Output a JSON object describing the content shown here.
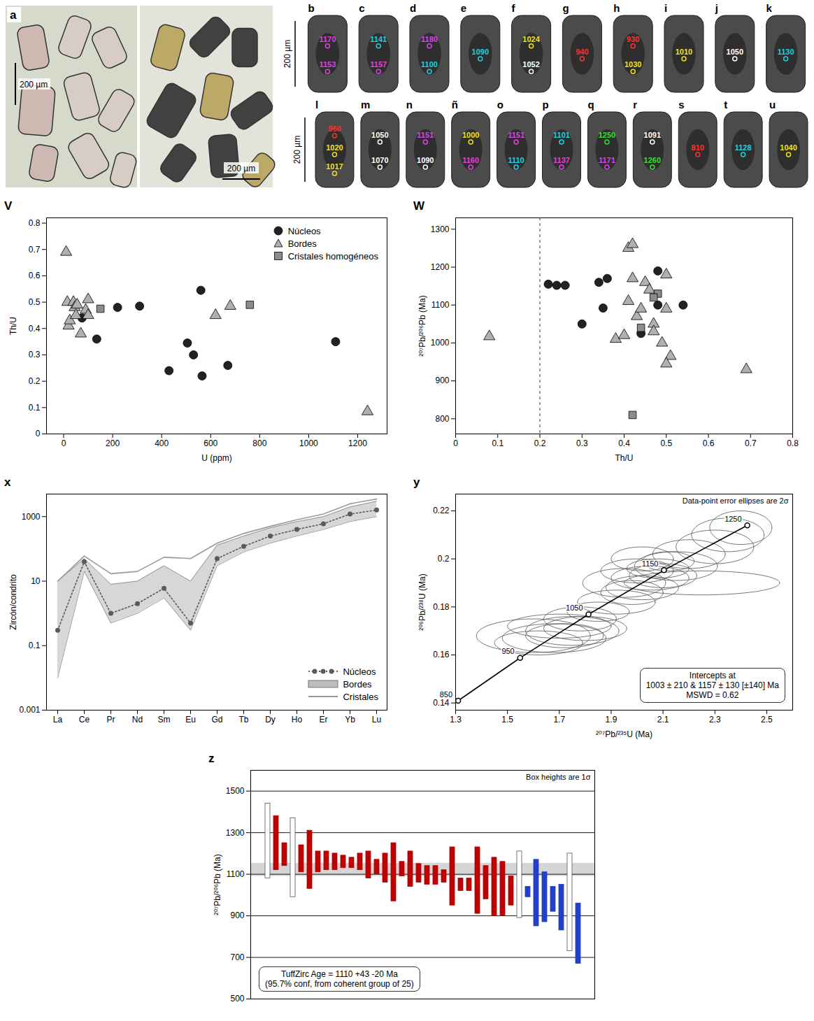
{
  "images": {
    "panel_a": {
      "label": "a",
      "scale_labels": [
        "200 µm",
        "200 µm"
      ]
    },
    "grains": {
      "scale_label": "200 µm",
      "rows": [
        [
          {
            "label": "b",
            "spots": [
              {
                "age": 1170,
                "color": "#e040e0"
              },
              {
                "age": 1153,
                "color": "#e040e0"
              }
            ]
          },
          {
            "label": "c",
            "spots": [
              {
                "age": 1141,
                "color": "#20d0e0"
              },
              {
                "age": 1157,
                "color": "#e040e0"
              }
            ]
          },
          {
            "label": "d",
            "spots": [
              {
                "age": 1180,
                "color": "#e040e0"
              },
              {
                "age": 1100,
                "color": "#20d0e0"
              }
            ]
          },
          {
            "label": "e",
            "spots": [
              {
                "age": 1090,
                "color": "#20d0e0"
              }
            ]
          },
          {
            "label": "f",
            "spots": [
              {
                "age": 1024,
                "color": "#f0e020"
              },
              {
                "age": 1052,
                "color": "#ffffff"
              }
            ]
          },
          {
            "label": "g",
            "spots": [
              {
                "age": 940,
                "color": "#ff3030"
              }
            ]
          },
          {
            "label": "h",
            "spots": [
              {
                "age": 930,
                "color": "#ff3030"
              },
              {
                "age": 1030,
                "color": "#f0e020"
              }
            ]
          },
          {
            "label": "i",
            "spots": [
              {
                "age": 1010,
                "color": "#f0e020"
              }
            ]
          },
          {
            "label": "j",
            "spots": [
              {
                "age": 1050,
                "color": "#ffffff"
              }
            ]
          },
          {
            "label": "k",
            "spots": [
              {
                "age": 1130,
                "color": "#20d0e0"
              }
            ]
          }
        ],
        [
          {
            "label": "l",
            "spots": [
              {
                "age": 960,
                "color": "#ff3030"
              },
              {
                "age": 1020,
                "color": "#f0e020"
              },
              {
                "age": 1017,
                "color": "#f0e020"
              }
            ]
          },
          {
            "label": "m",
            "spots": [
              {
                "age": 1050,
                "color": "#ffffff"
              },
              {
                "age": 1070,
                "color": "#ffffff"
              }
            ]
          },
          {
            "label": "n",
            "spots": [
              {
                "age": 1151,
                "color": "#e040e0"
              },
              {
                "age": 1090,
                "color": "#ffffff"
              }
            ]
          },
          {
            "label": "ñ",
            "spots": [
              {
                "age": 1000,
                "color": "#f0e020"
              },
              {
                "age": 1160,
                "color": "#e040e0"
              }
            ]
          },
          {
            "label": "o",
            "spots": [
              {
                "age": 1151,
                "color": "#e040e0"
              },
              {
                "age": 1110,
                "color": "#20d0e0"
              }
            ]
          },
          {
            "label": "p",
            "spots": [
              {
                "age": 1101,
                "color": "#20d0e0"
              },
              {
                "age": 1137,
                "color": "#e040e0"
              }
            ]
          },
          {
            "label": "q",
            "spots": [
              {
                "age": 1250,
                "color": "#30e030"
              },
              {
                "age": 1171,
                "color": "#e040e0"
              }
            ]
          },
          {
            "label": "r",
            "spots": [
              {
                "age": 1091,
                "color": "#ffffff"
              },
              {
                "age": 1260,
                "color": "#30e030"
              }
            ]
          },
          {
            "label": "s",
            "spots": [
              {
                "age": 810,
                "color": "#ff3030"
              }
            ]
          },
          {
            "label": "t",
            "spots": [
              {
                "age": 1128,
                "color": "#20d0e0"
              }
            ]
          },
          {
            "label": "u",
            "spots": [
              {
                "age": 1040,
                "color": "#f0e020"
              }
            ]
          }
        ]
      ]
    }
  },
  "chart_data": [
    {
      "panel": "V",
      "type": "scatter",
      "x_label": "U (ppm)",
      "y_label": "Th/U",
      "xlim": [
        -70,
        1320
      ],
      "xticks": [
        0,
        200,
        400,
        600,
        800,
        1000,
        1200
      ],
      "ylim": [
        0,
        0.82
      ],
      "yticks": [
        0,
        0.1,
        0.2,
        0.3,
        0.4,
        0.5,
        0.6,
        0.7,
        0.8
      ],
      "legend": "top-right",
      "series": [
        {
          "name": "Núcleos",
          "color": "#222222",
          "marker": "circle",
          "x": [
            220,
            310,
            135,
            75,
            560,
            505,
            530,
            430,
            565,
            670,
            1110
          ],
          "y": [
            0.48,
            0.485,
            0.36,
            0.44,
            0.545,
            0.345,
            0.3,
            0.24,
            0.22,
            0.26,
            0.35
          ]
        },
        {
          "name": "Bordes",
          "color": "#b0b0b0",
          "marker": "triangle",
          "x": [
            10,
            15,
            20,
            25,
            40,
            45,
            50,
            55,
            70,
            100,
            90,
            100,
            620,
            680,
            1240
          ],
          "y": [
            0.69,
            0.5,
            0.41,
            0.43,
            0.5,
            0.48,
            0.45,
            0.49,
            0.38,
            0.51,
            0.47,
            0.45,
            0.45,
            0.485,
            0.085
          ]
        },
        {
          "name": "Cristales homogéneos",
          "color": "#8c8c8c",
          "marker": "square",
          "x": [
            150,
            760
          ],
          "y": [
            0.475,
            0.49
          ]
        }
      ]
    },
    {
      "panel": "W",
      "type": "scatter",
      "x_label": "Th/U",
      "y_label": "²⁰⁷Pb/²⁰⁶Pb (Ma)",
      "xlim": [
        0,
        0.8
      ],
      "xticks": [
        0,
        0.1,
        0.2,
        0.3,
        0.4,
        0.5,
        0.6,
        0.7,
        0.8
      ],
      "ylim": [
        760,
        1330
      ],
      "yticks": [
        800,
        900,
        1000,
        1100,
        1200,
        1300
      ],
      "ref_line": {
        "x": 0.2,
        "line_style": "dashed"
      },
      "series": [
        {
          "color": "#222222",
          "marker": "circle",
          "x": [
            0.22,
            0.24,
            0.26,
            0.34,
            0.36,
            0.35,
            0.3,
            0.44,
            0.48,
            0.48,
            0.54
          ],
          "y": [
            1155,
            1152,
            1152,
            1160,
            1170,
            1092,
            1050,
            1025,
            1190,
            1100,
            1100
          ]
        },
        {
          "color": "#b0b0b0",
          "marker": "triangle",
          "x": [
            0.08,
            0.41,
            0.42,
            0.42,
            0.41,
            0.45,
            0.46,
            0.43,
            0.44,
            0.38,
            0.4,
            0.47,
            0.47,
            0.49,
            0.5,
            0.5,
            0.51,
            0.5,
            0.69
          ],
          "y": [
            1017,
            1250,
            1260,
            1170,
            1110,
            1160,
            1140,
            1070,
            1090,
            1010,
            1020,
            1050,
            1030,
            1000,
            1180,
            1090,
            965,
            945,
            930
          ]
        },
        {
          "color": "#8c8c8c",
          "marker": "square",
          "x": [
            0.48,
            0.47,
            0.44,
            0.42
          ],
          "y": [
            1130,
            1120,
            1040,
            810
          ]
        }
      ]
    },
    {
      "panel": "x",
      "type": "line",
      "log": "y",
      "y_label": "Zircón/condrito",
      "categories": [
        "La",
        "Ce",
        "Pr",
        "Nd",
        "Sm",
        "Eu",
        "Gd",
        "Tb",
        "Dy",
        "Ho",
        "Er",
        "Yb",
        "Lu"
      ],
      "ylim": [
        0.001,
        5000
      ],
      "yticks": [
        0.001,
        0.1,
        10,
        1000
      ],
      "legend": "bottom-right",
      "series": [
        {
          "name": "Núcleos",
          "type": "line",
          "color": "#5a5a5a",
          "line_style": "dotted",
          "marker": "circle",
          "values": [
            0.3,
            40,
            1.0,
            2,
            6,
            0.5,
            50,
            120,
            250,
            400,
            600,
            1200,
            1600
          ]
        },
        {
          "name": "Bordes",
          "type": "area",
          "color": "#bdbdbd",
          "low": [
            0.01,
            20,
            0.5,
            1,
            3,
            0.3,
            30,
            80,
            150,
            250,
            400,
            700,
            1000
          ],
          "high": [
            10,
            50,
            8,
            10,
            30,
            10,
            130,
            250,
            450,
            700,
            1000,
            2000,
            3000
          ]
        },
        {
          "name": "Cristales",
          "type": "line",
          "color": "#9a9a9a",
          "line_style": "solid",
          "values": [
            10,
            60,
            17,
            20,
            55,
            50,
            150,
            300,
            500,
            800,
            1200,
            2500,
            3500
          ]
        }
      ]
    },
    {
      "panel": "y",
      "type": "concordia",
      "x_label": "²⁰⁷Pb/²³⁵U (Ma)",
      "y_label": "²⁰⁶Pb/²³⁸U (Ma)",
      "xlim": [
        1.3,
        2.6
      ],
      "xticks": [
        1.3,
        1.5,
        1.7,
        1.9,
        2.1,
        2.3,
        2.5
      ],
      "ylim": [
        0.137,
        0.227
      ],
      "yticks": [
        0.14,
        0.16,
        0.18,
        0.2,
        0.22
      ],
      "note": "Data-point error ellipses are 2σ",
      "box_text": [
        "Intercepts at",
        "1003 ± 210 & 1157 ± 130 [±140] Ma",
        "MSWD = 0.62"
      ],
      "concordia": {
        "ages": [
          850,
          950,
          1050,
          1150,
          1250
        ],
        "x": [
          1.3097,
          1.5488,
          1.8126,
          2.1037,
          2.425
        ],
        "y": [
          0.14094,
          0.15878,
          0.17689,
          0.1953,
          0.21398
        ]
      },
      "ellipses": [
        {
          "x": 1.62,
          "y": 0.165,
          "x_err": 0.17,
          "y_err": 0.005
        },
        {
          "x": 1.68,
          "y": 0.167,
          "x_err": 0.2,
          "y_err": 0.006
        },
        {
          "x": 1.72,
          "y": 0.168,
          "x_err": 0.15,
          "y_err": 0.005
        },
        {
          "x": 1.6,
          "y": 0.168,
          "x_err": 0.22,
          "y_err": 0.007
        },
        {
          "x": 1.75,
          "y": 0.17,
          "x_err": 0.18,
          "y_err": 0.006
        },
        {
          "x": 1.7,
          "y": 0.172,
          "x_err": 0.2,
          "y_err": 0.005
        },
        {
          "x": 1.8,
          "y": 0.171,
          "x_err": 0.16,
          "y_err": 0.005
        },
        {
          "x": 1.78,
          "y": 0.175,
          "x_err": 0.14,
          "y_err": 0.005
        },
        {
          "x": 1.85,
          "y": 0.178,
          "x_err": 0.12,
          "y_err": 0.004
        },
        {
          "x": 1.92,
          "y": 0.182,
          "x_err": 0.15,
          "y_err": 0.005
        },
        {
          "x": 1.98,
          "y": 0.186,
          "x_err": 0.12,
          "y_err": 0.005
        },
        {
          "x": 2.02,
          "y": 0.188,
          "x_err": 0.14,
          "y_err": 0.005
        },
        {
          "x": 1.95,
          "y": 0.19,
          "x_err": 0.16,
          "y_err": 0.006
        },
        {
          "x": 2.05,
          "y": 0.192,
          "x_err": 0.15,
          "y_err": 0.005
        },
        {
          "x": 2.1,
          "y": 0.193,
          "x_err": 0.13,
          "y_err": 0.005
        },
        {
          "x": 2.0,
          "y": 0.195,
          "x_err": 0.14,
          "y_err": 0.005
        },
        {
          "x": 2.08,
          "y": 0.196,
          "x_err": 0.12,
          "y_err": 0.004
        },
        {
          "x": 2.15,
          "y": 0.197,
          "x_err": 0.16,
          "y_err": 0.006
        },
        {
          "x": 2.12,
          "y": 0.199,
          "x_err": 0.1,
          "y_err": 0.004
        },
        {
          "x": 2.25,
          "y": 0.19,
          "x_err": 0.3,
          "y_err": 0.005
        },
        {
          "x": 2.2,
          "y": 0.202,
          "x_err": 0.14,
          "y_err": 0.006
        },
        {
          "x": 2.3,
          "y": 0.205,
          "x_err": 0.15,
          "y_err": 0.007
        },
        {
          "x": 2.35,
          "y": 0.21,
          "x_err": 0.14,
          "y_err": 0.007
        },
        {
          "x": 2.4,
          "y": 0.213,
          "x_err": 0.12,
          "y_err": 0.007
        },
        {
          "x": 2.02,
          "y": 0.2,
          "x_err": 0.12,
          "y_err": 0.005
        }
      ]
    },
    {
      "panel": "z",
      "type": "range_bar",
      "y_label": "²⁰⁷Pb/²⁰⁶Pb (Ma)",
      "ylim": [
        500,
        1600
      ],
      "yticks": [
        500,
        700,
        900,
        1100,
        1300,
        1500
      ],
      "grid": true,
      "tick_labels": "y",
      "note": "Box heights are 1σ",
      "box_text": [
        "TuffZirc Age = 1110 +43 -20 Ma",
        "(95.7% conf, from coherent group of 25)"
      ],
      "age_band": {
        "age": 1110,
        "plus": 43,
        "minus": 20
      },
      "low": [
        1080,
        1120,
        1140,
        990,
        1110,
        1030,
        1110,
        1120,
        1120,
        1130,
        1130,
        1120,
        1080,
        1100,
        1060,
        970,
        1090,
        1040,
        1060,
        1050,
        1050,
        1060,
        950,
        1020,
        1020,
        910,
        980,
        900,
        900,
        950,
        890,
        990,
        850,
        870,
        920,
        830,
        730,
        670
      ],
      "high": [
        1440,
        1380,
        1250,
        1370,
        1240,
        1310,
        1210,
        1210,
        1200,
        1190,
        1180,
        1200,
        1210,
        1170,
        1200,
        1250,
        1160,
        1210,
        1150,
        1140,
        1140,
        1120,
        1230,
        1080,
        1080,
        1230,
        1140,
        1180,
        1160,
        1090,
        1210,
        1040,
        1170,
        1110,
        1040,
        1050,
        1200,
        960
      ],
      "colors": [
        "#ffffff",
        "#c00000",
        "#c00000",
        "#ffffff",
        "#c00000",
        "#c00000",
        "#c00000",
        "#c00000",
        "#c00000",
        "#c00000",
        "#c00000",
        "#c00000",
        "#c00000",
        "#c00000",
        "#c00000",
        "#c00000",
        "#c00000",
        "#c00000",
        "#c00000",
        "#c00000",
        "#c00000",
        "#c00000",
        "#c00000",
        "#c00000",
        "#c00000",
        "#c00000",
        "#c00000",
        "#c00000",
        "#c00000",
        "#c00000",
        "#ffffff",
        "#1f3fcc",
        "#1f3fcc",
        "#1f3fcc",
        "#1f3fcc",
        "#1f3fcc",
        "#ffffff",
        "#1f3fcc"
      ]
    }
  ]
}
